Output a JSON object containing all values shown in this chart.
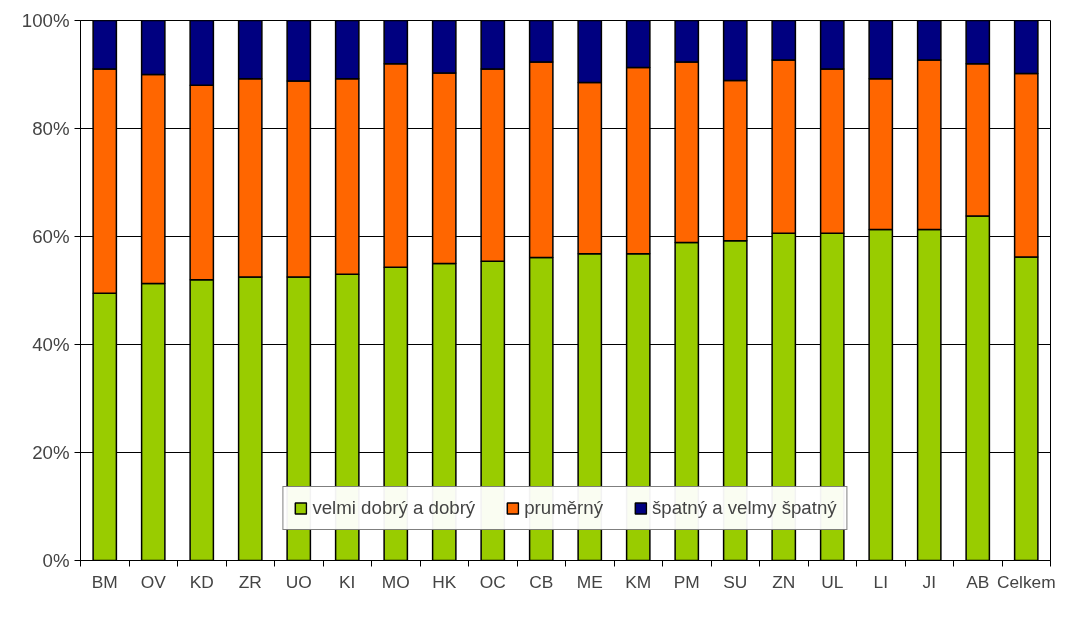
{
  "chart_data": {
    "type": "bar",
    "stacked": true,
    "categories": [
      "BM",
      "OV",
      "KD",
      "ZR",
      "UO",
      "KI",
      "MO",
      "HK",
      "OC",
      "CB",
      "ME",
      "KM",
      "PM",
      "SU",
      "ZN",
      "UL",
      "LI",
      "JI",
      "AB",
      "Celkem"
    ],
    "series": [
      {
        "name": "velmi dobrý a dobrý",
        "color": "#99cc00",
        "values": [
          49.5,
          51.3,
          52,
          52.5,
          52.5,
          53,
          54.3,
          55,
          55.4,
          56.1,
          56.8,
          56.8,
          58.9,
          59.2,
          60.6,
          60.6,
          61.3,
          61.3,
          63.8,
          56.2
        ]
      },
      {
        "name": "pruměrný",
        "color": "#ff6600",
        "values": [
          41.5,
          38.7,
          36,
          36.7,
          36.3,
          36.2,
          37.7,
          35.3,
          35.6,
          36.2,
          31.7,
          34.5,
          33.4,
          29.7,
          32.1,
          30.4,
          27.9,
          31.4,
          28.2,
          34
        ]
      },
      {
        "name": "špatný a velmy špatný",
        "color": "#000080",
        "values": [
          9,
          10,
          12,
          10.8,
          11.2,
          10.8,
          8,
          9.7,
          9,
          7.7,
          11.5,
          8.7,
          7.7,
          11.1,
          7.3,
          9,
          10.8,
          7.3,
          8,
          9.8
        ]
      }
    ],
    "ylim": [
      0,
      100
    ],
    "yticks": [
      {
        "value": 0,
        "label": "0%"
      },
      {
        "value": 20,
        "label": "20%"
      },
      {
        "value": 40,
        "label": "40%"
      },
      {
        "value": 60,
        "label": "60%"
      },
      {
        "value": 80,
        "label": "80%"
      },
      {
        "value": 100,
        "label": "100%"
      }
    ],
    "grid": "y",
    "legend": "bottom"
  }
}
